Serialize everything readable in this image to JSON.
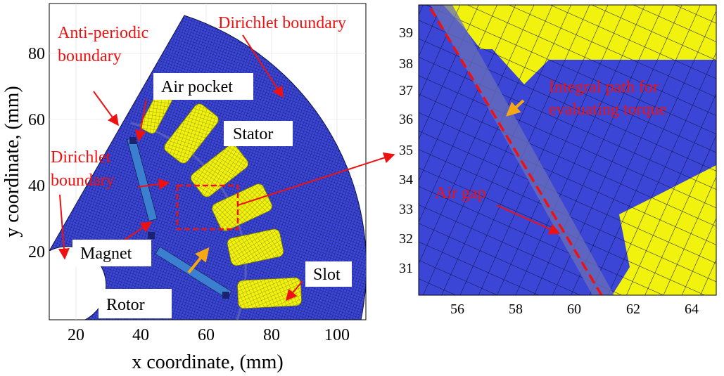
{
  "left_panel": {
    "x_axis": {
      "label": "x coordinate, (mm)",
      "ticks": [
        "20",
        "40",
        "60",
        "80",
        "100"
      ]
    },
    "y_axis": {
      "label": "y coordinate, (mm)",
      "ticks": [
        "20",
        "40",
        "60",
        "80"
      ]
    },
    "annotations": {
      "anti_periodic_line1": "Anti-periodic",
      "anti_periodic_line2": "boundary",
      "dirichlet_top": "Dirichlet boundary",
      "dirichlet_left_line1": "Dirichlet",
      "dirichlet_left_line2": "boundary"
    },
    "labels": {
      "air_pocket": "Air pocket",
      "stator": "Stator",
      "magnet": "Magnet",
      "rotor": "Rotor",
      "slot": "Slot"
    }
  },
  "right_panel": {
    "x_axis": {
      "ticks": [
        "56",
        "58",
        "60",
        "62",
        "64"
      ]
    },
    "y_axis": {
      "ticks": [
        "31",
        "32",
        "33",
        "34",
        "35",
        "36",
        "37",
        "38",
        "39"
      ]
    },
    "annotations": {
      "integral_line1": "Integral path for",
      "integral_line2": "evaluating torque",
      "air_gap": "Air gap"
    }
  },
  "colors": {
    "mesh_fill": "#3c46d6",
    "mesh_line": "#0d1240",
    "slot_fill": "#f2f20f",
    "air_gap": "#6a70b8",
    "magnet": "#3a7fd0",
    "annotation_red": "#ee1111",
    "orange_arrow": "#f5a814"
  }
}
